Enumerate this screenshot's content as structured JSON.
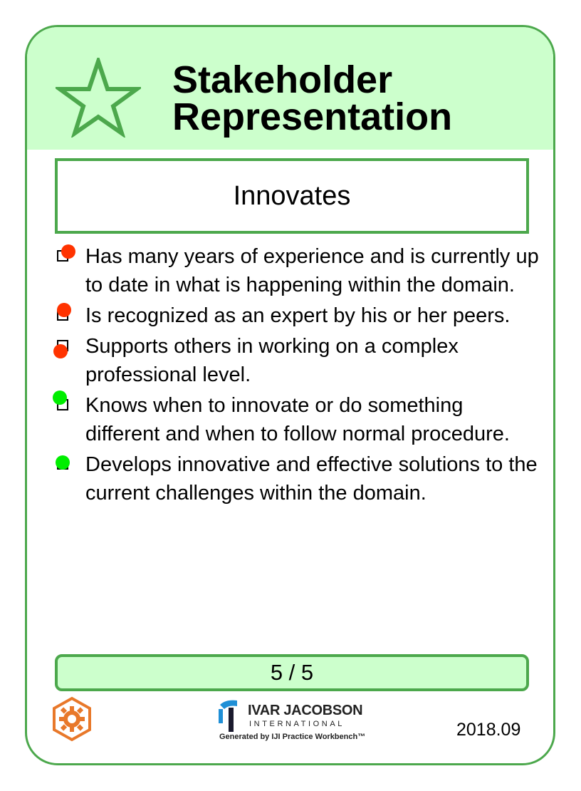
{
  "card": {
    "title": "Stakeholder\nRepresentation",
    "icon": "star-icon",
    "state_name": "Innovates",
    "checklist": [
      {
        "text": "Has many years of experience and is currently up to date in what is happening within the domain.",
        "status": "red"
      },
      {
        "text": "Is recognized as an expert by his or her peers.",
        "status": "red"
      },
      {
        "text": "Supports others in working on a complex professional level.",
        "status": "red"
      },
      {
        "text": "Knows when to innovate or do something different and when to follow normal procedure.",
        "status": "green"
      },
      {
        "text": "Develops innovative and effective solutions to the current challenges within the domain.",
        "status": "green"
      }
    ],
    "progress": "5 / 5",
    "progress_value": 1.0,
    "version": "2018.09"
  },
  "footer": {
    "gear_icon": "gear-icon",
    "logo_name": "IVAR JACOBSON",
    "logo_sub": "INTERNATIONAL",
    "logo_generated": "Generated by IJI Practice Workbench™"
  },
  "colors": {
    "header_bg": "#ccffcc",
    "border": "#4ca84c",
    "dot_red": "#ff3300",
    "dot_green": "#00ee00",
    "gear": "#e8782a",
    "logo_blue": "#1f8fd6"
  }
}
